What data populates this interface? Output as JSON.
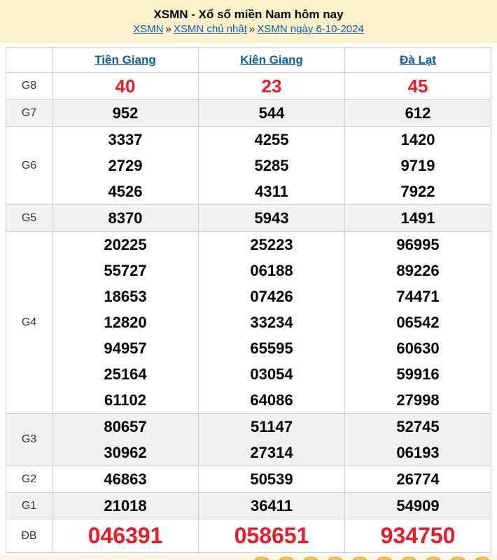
{
  "header": {
    "title": "XSMN - Xổ số miền Nam hôm nay",
    "separator": "»",
    "breadcrumb": [
      {
        "label": "XSMN"
      },
      {
        "label": "XSMN chủ nhật"
      },
      {
        "label": "XSMN ngày 6-10-2024"
      }
    ]
  },
  "table": {
    "provinces": [
      "Tiền Giang",
      "Kiên Giang",
      "Đà Lạt"
    ],
    "rows": [
      {
        "prize": "G8",
        "highlight": true,
        "values": [
          [
            "40"
          ],
          [
            "23"
          ],
          [
            "45"
          ]
        ]
      },
      {
        "prize": "G7",
        "values": [
          [
            "952"
          ],
          [
            "544"
          ],
          [
            "612"
          ]
        ]
      },
      {
        "prize": "G6",
        "values": [
          [
            "3337",
            "2729",
            "4526"
          ],
          [
            "4255",
            "5285",
            "4311"
          ],
          [
            "1420",
            "9719",
            "7922"
          ]
        ]
      },
      {
        "prize": "G5",
        "values": [
          [
            "8370"
          ],
          [
            "5943"
          ],
          [
            "1491"
          ]
        ]
      },
      {
        "prize": "G4",
        "values": [
          [
            "20225",
            "55727",
            "18653",
            "12820",
            "94957",
            "25164",
            "61102"
          ],
          [
            "25223",
            "06188",
            "07426",
            "33234",
            "65595",
            "03054",
            "64086"
          ],
          [
            "96995",
            "89226",
            "74471",
            "06542",
            "60630",
            "59916",
            "27998"
          ]
        ]
      },
      {
        "prize": "G3",
        "values": [
          [
            "80657",
            "30962"
          ],
          [
            "51147",
            "27314"
          ],
          [
            "52745",
            "06193"
          ]
        ]
      },
      {
        "prize": "G2",
        "values": [
          [
            "46863"
          ],
          [
            "50539"
          ],
          [
            "26774"
          ]
        ]
      },
      {
        "prize": "G1",
        "values": [
          [
            "21018"
          ],
          [
            "36411"
          ],
          [
            "54909"
          ]
        ]
      },
      {
        "prize": "ĐB",
        "special": true,
        "values": [
          [
            "046391"
          ],
          [
            "058651"
          ],
          [
            "934750"
          ]
        ]
      }
    ]
  },
  "colors": {
    "header_background": "#fbf0c8",
    "link_blue": "#0b5bb5",
    "number_red": "#ed1c24",
    "stripe_gray": "#f0f0f0",
    "border_gray": "#cfcfcf",
    "footer_strip": "#fbf5e1",
    "ball_gold": "#e2a133"
  },
  "footer": {
    "ball_icon_count": 10
  }
}
